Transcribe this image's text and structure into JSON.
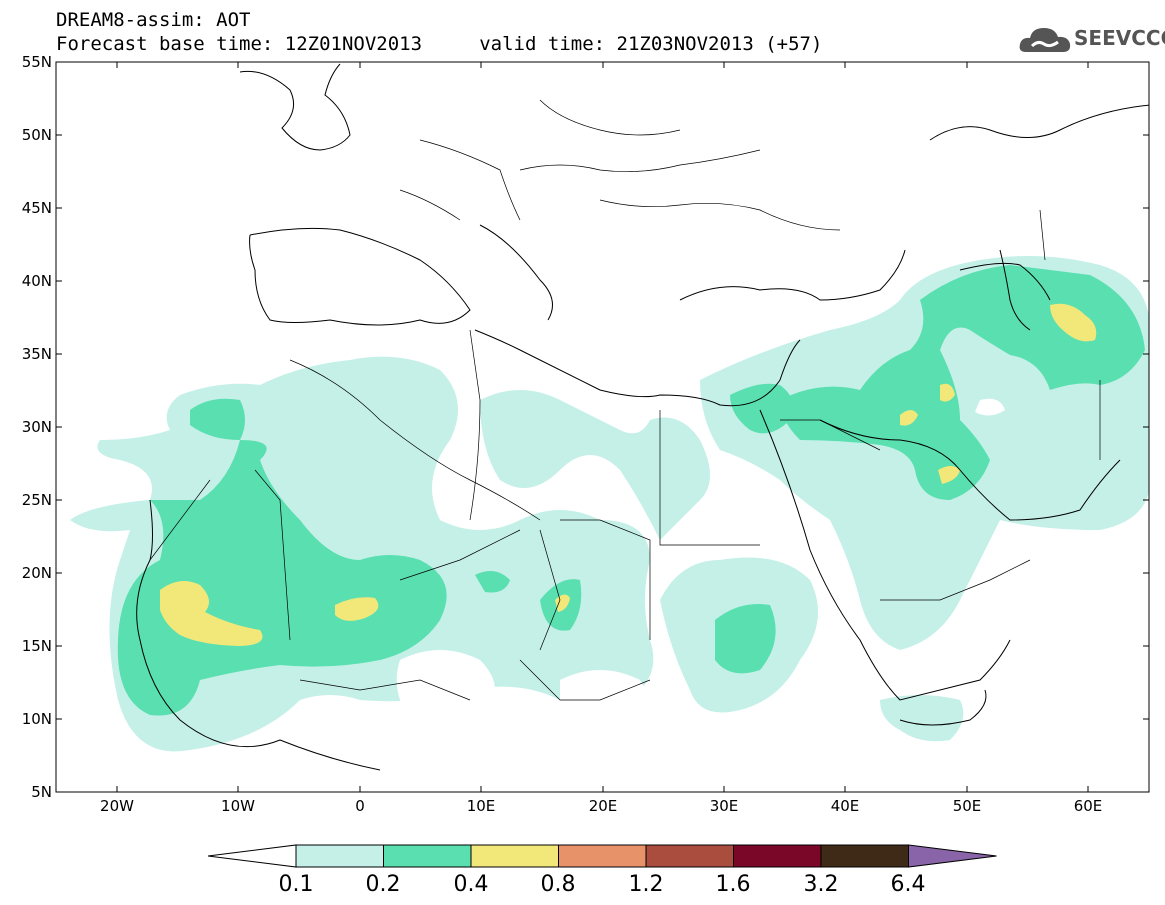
{
  "header": {
    "line1": "DREAM8-assim: AOT",
    "line2": "Forecast base time: 12Z01NOV2013     valid time: 21Z03NOV2013 (+57)",
    "logo_text": "SEEVCCC"
  },
  "axes": {
    "lat_labels": [
      "55N",
      "50N",
      "45N",
      "40N",
      "35N",
      "30N",
      "25N",
      "20N",
      "15N",
      "10N",
      "5N"
    ],
    "lon_labels": [
      "20W",
      "10W",
      "0",
      "10E",
      "20E",
      "30E",
      "40E",
      "50E",
      "60E"
    ]
  },
  "colorbar": {
    "labels": [
      "0.1",
      "0.2",
      "0.4",
      "0.8",
      "1.2",
      "1.6",
      "3.2",
      "6.4"
    ],
    "colors": [
      "#ffffff",
      "#c4f0e8",
      "#59dfb0",
      "#f2e87a",
      "#e8926a",
      "#aa4c3e",
      "#7a0628",
      "#3e2a16",
      "#8a64a8"
    ]
  },
  "map_style": {
    "coast_color": "#000000",
    "aot_colors": {
      "c01": "#c4f0e8",
      "c02": "#59dfb0",
      "c04": "#f2e87a"
    }
  }
}
